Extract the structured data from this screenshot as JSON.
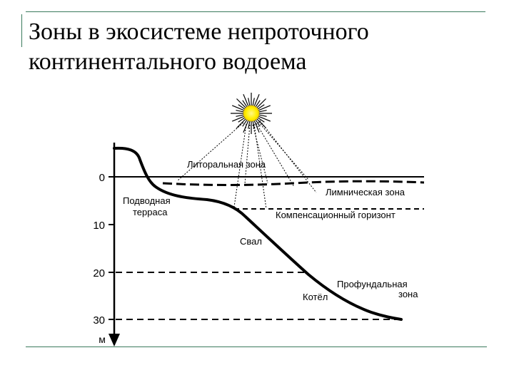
{
  "title": {
    "line1": "Зоны в экосистеме непроточного",
    "line2": "континентального водоема"
  },
  "axis": {
    "unit": "м",
    "ticks": [
      {
        "value": 0,
        "label": "0"
      },
      {
        "value": 10,
        "label": "10"
      },
      {
        "value": 20,
        "label": "20"
      },
      {
        "value": 30,
        "label": "30"
      }
    ]
  },
  "zones": {
    "littoral": "Литоральная зона",
    "limnetic": "Лимническая зона",
    "terrace_line1": "Подводная",
    "terrace_line2": "терраса",
    "compensation": "Компенсационный горизонт",
    "slope": "Свал",
    "profundal_line1": "Профундальная",
    "profundal_line2": "зона",
    "basin": "Котёл"
  },
  "colors": {
    "frame": "#3a7a5c",
    "sun_core": "#ffee00",
    "lines": "#000000"
  },
  "icons": {
    "sun": "sun-icon"
  }
}
